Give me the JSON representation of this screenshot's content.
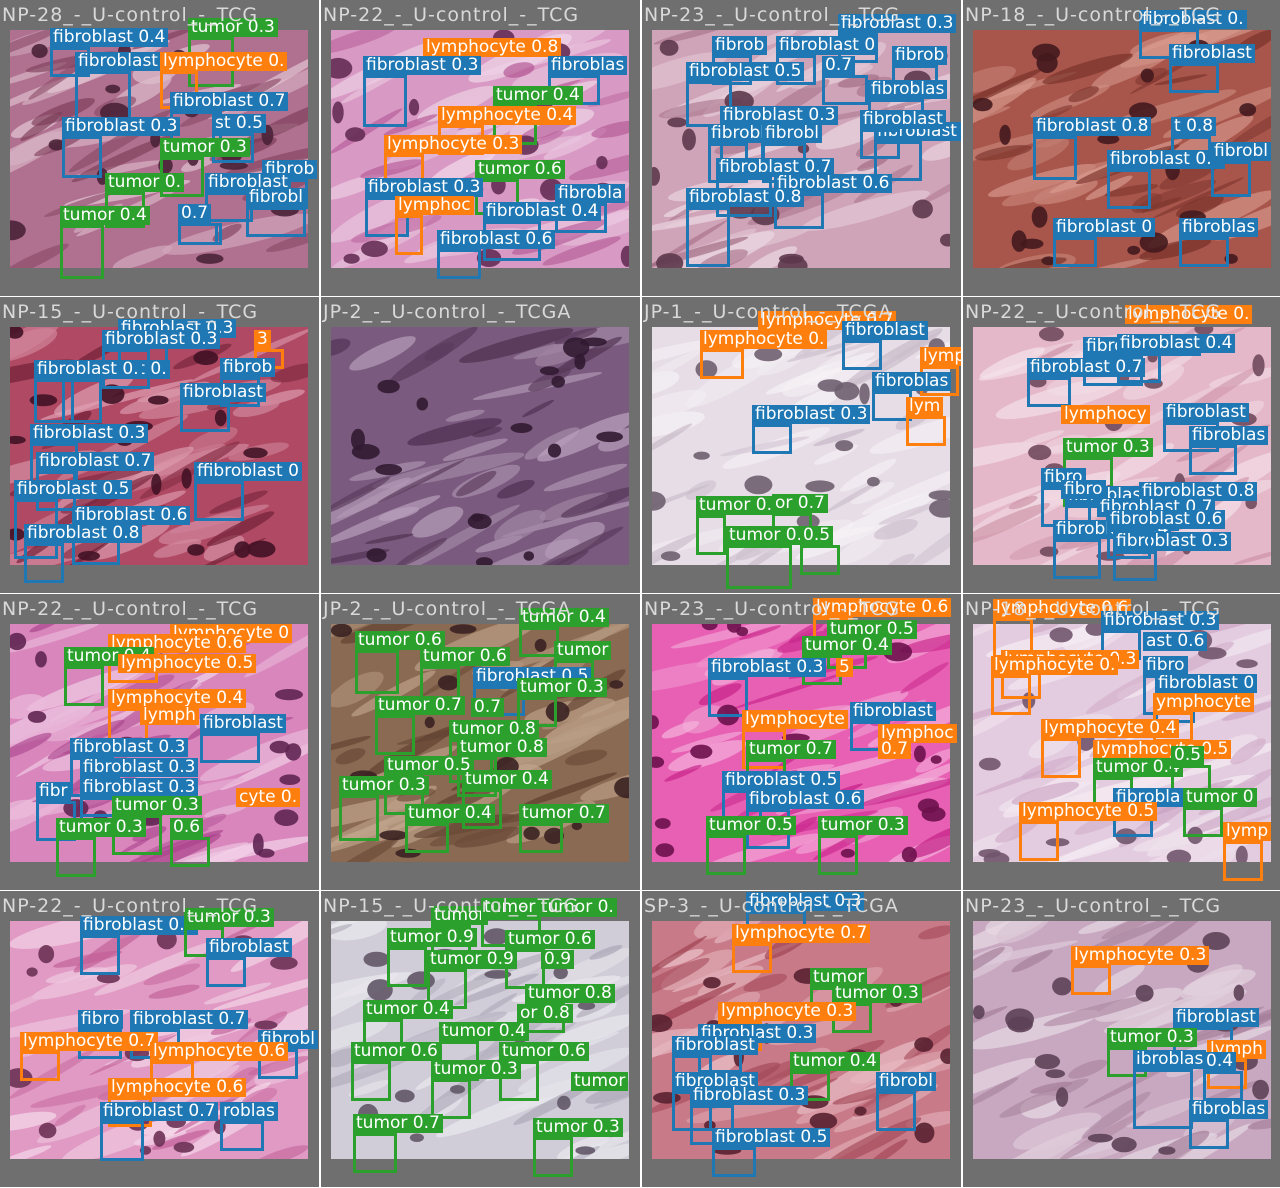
{
  "colors": {
    "fibroblast": "#1f77b4",
    "lymphocyte": "#ff7f0e",
    "tumor": "#2ca02c"
  },
  "tiles": [
    {
      "title": "NP-28_-_U-control_-_TCG",
      "palette": [
        "#7a3a55",
        "#b07090",
        "#e4c8d4"
      ],
      "detections": [
        {
          "cls": "fibroblast",
          "label": "fibroblast 0.4"
        },
        {
          "cls": "tumor",
          "label": "tumor 0.3"
        },
        {
          "cls": "fibroblast",
          "label": "fibroblast"
        },
        {
          "cls": "lymphocyte",
          "label": "lymphocyte 0."
        },
        {
          "cls": "fibroblast",
          "label": "fibroblast 0.7"
        },
        {
          "cls": "fibroblast",
          "label": "fibroblast 0.3"
        },
        {
          "cls": "fibroblast",
          "label": "st 0.5"
        },
        {
          "cls": "tumor",
          "label": "tumor 0.3"
        },
        {
          "cls": "fibroblast",
          "label": "0.7"
        },
        {
          "cls": "fibroblast",
          "label": "fibrob"
        },
        {
          "cls": "tumor",
          "label": "tumor 0."
        },
        {
          "cls": "fibroblast",
          "label": "fibroblast"
        },
        {
          "cls": "fibroblast",
          "label": "fibrobl"
        },
        {
          "cls": "tumor",
          "label": "tumor 0.4"
        },
        {
          "cls": "fibroblast",
          "label": "0.7"
        }
      ]
    },
    {
      "title": "NP-22_-_U-control_-_TCG",
      "palette": [
        "#b05090",
        "#d89ac4",
        "#f3dcec"
      ],
      "detections": [
        {
          "cls": "lymphocyte",
          "label": "lymphocyte 0.8"
        },
        {
          "cls": "fibroblast",
          "label": "fibroblast 0.3"
        },
        {
          "cls": "fibroblast",
          "label": "fibroblas"
        },
        {
          "cls": "tumor",
          "label": "tumor 0.4"
        },
        {
          "cls": "lymphocyte",
          "label": "lymphocyte 0.4"
        },
        {
          "cls": "lymphocyte",
          "label": "lymphocyte 0.3"
        },
        {
          "cls": "tumor",
          "label": "tumor 0.6"
        },
        {
          "cls": "fibroblast",
          "label": "fibroblast 0.3"
        },
        {
          "cls": "fibroblast",
          "label": "fibrobla"
        },
        {
          "cls": "lymphocyte",
          "label": "lymphoc"
        },
        {
          "cls": "fibroblast",
          "label": "fibroblast 0.4"
        },
        {
          "cls": "fibroblast",
          "label": "fibroblast 0.6"
        }
      ]
    },
    {
      "title": "NP-23_-_U-control_-_TCG",
      "palette": [
        "#a06880",
        "#cfa4b8",
        "#eedde6"
      ],
      "detections": [
        {
          "cls": "fibroblast",
          "label": "fibroblast 0.3"
        },
        {
          "cls": "fibroblast",
          "label": "fibrob"
        },
        {
          "cls": "fibroblast",
          "label": "fibroblast 0"
        },
        {
          "cls": "fibroblast",
          "label": "fibroblast 0.5"
        },
        {
          "cls": "fibroblast",
          "label": "0.7"
        },
        {
          "cls": "fibroblast",
          "label": "fibrob"
        },
        {
          "cls": "fibroblast",
          "label": "fibroblas"
        },
        {
          "cls": "fibroblast",
          "label": "fibroblast 0.3"
        },
        {
          "cls": "fibroblast",
          "label": "fibroblast"
        },
        {
          "cls": "fibroblast",
          "label": "fibrobl"
        },
        {
          "cls": "fibroblast",
          "label": "fibroblast 0.7"
        },
        {
          "cls": "fibroblast",
          "label": "fibroblast"
        },
        {
          "cls": "fibroblast",
          "label": "fibroblast 0.7"
        },
        {
          "cls": "fibroblast",
          "label": "fibroblast 0.6"
        },
        {
          "cls": "fibroblast",
          "label": "fibroblast 0.8"
        }
      ]
    },
    {
      "title": "NP-18_-_U-control_-_TCG",
      "palette": [
        "#6e2a22",
        "#a8564c",
        "#d89a8e"
      ],
      "detections": [
        {
          "cls": "fibroblast",
          "label": "fibroblast 0."
        },
        {
          "cls": "fibroblast",
          "label": "fibroblast"
        },
        {
          "cls": "fibroblast",
          "label": "fibroblast 0.8"
        },
        {
          "cls": "fibroblast",
          "label": "t 0.8"
        },
        {
          "cls": "fibroblast",
          "label": "fibroblast 0.7"
        },
        {
          "cls": "fibroblast",
          "label": "fibrobl"
        },
        {
          "cls": "fibroblast",
          "label": "fibroblast 0"
        },
        {
          "cls": "fibroblast",
          "label": "fibroblas"
        }
      ]
    },
    {
      "title": "NP-15_-_U-control_-_TCG",
      "palette": [
        "#6a1a30",
        "#b04a64",
        "#e0a0b4"
      ],
      "detections": [
        {
          "cls": "fibroblast",
          "label": "fibroblast 0.3"
        },
        {
          "cls": "fibroblast",
          "label": "fibroblast 0.3"
        },
        {
          "cls": "lymphocyte",
          "label": "3"
        },
        {
          "cls": "fibroblast",
          "label": "fibroblast 0."
        },
        {
          "cls": "fibroblast",
          "label": "fibrob"
        },
        {
          "cls": "fibroblast",
          "label": "fibroblast 0."
        },
        {
          "cls": "fibroblast",
          "label": "fibroblast"
        },
        {
          "cls": "fibroblast",
          "label": "fibroblast 0.3"
        },
        {
          "cls": "fibroblast",
          "label": "fibroblast 0.7"
        },
        {
          "cls": "fibroblast",
          "label": "ffibroblast 0"
        },
        {
          "cls": "fibroblast",
          "label": "fibroblast 0.5"
        },
        {
          "cls": "fibroblast",
          "label": "fibroblast 0.6"
        },
        {
          "cls": "fibroblast",
          "label": "fibroblast 0.8"
        }
      ]
    },
    {
      "title": "JP-2_-_U-control_-_TCGA",
      "palette": [
        "#4a2a4a",
        "#7a5a7e",
        "#bca4c0"
      ],
      "detections": []
    },
    {
      "title": "JP-1_-_U-control_-_TCGA",
      "palette": [
        "#c4b4c4",
        "#e6dde6",
        "#f6f3f6"
      ],
      "detections": [
        {
          "cls": "lymphocyte",
          "label": "lymphocyte 0.7"
        },
        {
          "cls": "lymphocyte",
          "label": "lymphocyte 0."
        },
        {
          "cls": "fibroblast",
          "label": "fibroblast"
        },
        {
          "cls": "lymphocyte",
          "label": "lymp"
        },
        {
          "cls": "fibroblast",
          "label": "fibroblas"
        },
        {
          "cls": "fibroblast",
          "label": "fibroblast 0.3"
        },
        {
          "cls": "lymphocyte",
          "label": "lym"
        },
        {
          "cls": "tumor",
          "label": "tumor 0.5"
        },
        {
          "cls": "tumor",
          "label": "or 0.7"
        },
        {
          "cls": "tumor",
          "label": "tumor 0.3"
        },
        {
          "cls": "tumor",
          "label": "0.5"
        }
      ]
    },
    {
      "title": "NP-22_-_U-control_-_TCG",
      "palette": [
        "#c88aa0",
        "#e4b8c8",
        "#f6e4ec"
      ],
      "detections": [
        {
          "cls": "lymphocyte",
          "label": "lymphocyte 0."
        },
        {
          "cls": "fibroblast",
          "label": "fibroblast 0.5"
        },
        {
          "cls": "fibroblast",
          "label": "fibroblast 0.4"
        },
        {
          "cls": "fibroblast",
          "label": "fibroblast 0.7"
        },
        {
          "cls": "lymphocyte",
          "label": "lymphocy"
        },
        {
          "cls": "fibroblast",
          "label": "fibroblast"
        },
        {
          "cls": "fibroblast",
          "label": "fibroblas"
        },
        {
          "cls": "tumor",
          "label": "tumor 0.3"
        },
        {
          "cls": "fibroblast",
          "label": "fibro"
        },
        {
          "cls": "fibroblast",
          "label": "fibroblast 0.5"
        },
        {
          "cls": "fibroblast",
          "label": "fibroblast 0.8"
        },
        {
          "cls": "fibroblast",
          "label": "fibro"
        },
        {
          "cls": "fibroblast",
          "label": "fibroblast 0.7"
        },
        {
          "cls": "fibroblast",
          "label": "fibroblast 0.4"
        },
        {
          "cls": "fibroblast",
          "label": "fibroblast 0.3"
        },
        {
          "cls": "fibroblast",
          "label": "fibroblast 0.6"
        }
      ]
    },
    {
      "title": "NP-22_-_U-control_-_TCG",
      "palette": [
        "#a8408a",
        "#d886bc",
        "#f4d4ea"
      ],
      "detections": [
        {
          "cls": "lymphocyte",
          "label": "lymphocyte 0"
        },
        {
          "cls": "lymphocyte",
          "label": "lymphocyte 0.6"
        },
        {
          "cls": "tumor",
          "label": "tumor 0.4"
        },
        {
          "cls": "lymphocyte",
          "label": "lymphocyte 0.5"
        },
        {
          "cls": "lymphocyte",
          "label": "lymphocyte 0.4"
        },
        {
          "cls": "lymphocyte",
          "label": "lymph"
        },
        {
          "cls": "fibroblast",
          "label": "fibroblast"
        },
        {
          "cls": "fibroblast",
          "label": "fibroblast 0.3"
        },
        {
          "cls": "fibroblast",
          "label": "fibroblast 0.3"
        },
        {
          "cls": "fibroblast",
          "label": "fibroblast 0.3"
        },
        {
          "cls": "fibroblast",
          "label": "fibr"
        },
        {
          "cls": "tumor",
          "label": "tumor 0.3"
        },
        {
          "cls": "lymphocyte",
          "label": "cyte 0."
        },
        {
          "cls": "tumor",
          "label": "tumor 0.3"
        },
        {
          "cls": "tumor",
          "label": "0.6"
        }
      ]
    },
    {
      "title": "JP-2_-_U-control_-_TCGA",
      "palette": [
        "#5a3a2a",
        "#8a6a52",
        "#c4a890"
      ],
      "detections": [
        {
          "cls": "tumor",
          "label": "tumor 0.4"
        },
        {
          "cls": "tumor",
          "label": "tumor 0.6"
        },
        {
          "cls": "tumor",
          "label": "tumor 0.6"
        },
        {
          "cls": "tumor",
          "label": "tumor"
        },
        {
          "cls": "fibroblast",
          "label": "fibroblast 0.5"
        },
        {
          "cls": "tumor",
          "label": "tumor 0.3"
        },
        {
          "cls": "tumor",
          "label": "tumor 0.7"
        },
        {
          "cls": "tumor",
          "label": "0.7"
        },
        {
          "cls": "tumor",
          "label": "tumor 0.8"
        },
        {
          "cls": "tumor",
          "label": "tumor 0.8"
        },
        {
          "cls": "tumor",
          "label": "tumor 0.5"
        },
        {
          "cls": "tumor",
          "label": "tumor 0.4"
        },
        {
          "cls": "tumor",
          "label": "tumor 0.3"
        },
        {
          "cls": "tumor",
          "label": "tumor 0.4"
        },
        {
          "cls": "tumor",
          "label": "tumor 0.7"
        }
      ]
    },
    {
      "title": "NP-23_-_U-control_-_TCG",
      "palette": [
        "#c01880",
        "#e860b4",
        "#f4b4dc"
      ],
      "detections": [
        {
          "cls": "lymphocyte",
          "label": "lymphocyte 0.6"
        },
        {
          "cls": "tumor",
          "label": "tumor 0.5"
        },
        {
          "cls": "tumor",
          "label": "tumor 0.4"
        },
        {
          "cls": "fibroblast",
          "label": "fibroblast 0.3"
        },
        {
          "cls": "lymphocyte",
          "label": "5"
        },
        {
          "cls": "lymphocyte",
          "label": "lymphocyte"
        },
        {
          "cls": "fibroblast",
          "label": "fibroblast"
        },
        {
          "cls": "lymphocyte",
          "label": "lymphoc"
        },
        {
          "cls": "tumor",
          "label": "tumor 0.7"
        },
        {
          "cls": "lymphocyte",
          "label": "0.7"
        },
        {
          "cls": "fibroblast",
          "label": "fibroblast 0.5"
        },
        {
          "cls": "fibroblast",
          "label": "fibroblast 0.6"
        },
        {
          "cls": "tumor",
          "label": "tumor 0.5"
        },
        {
          "cls": "tumor",
          "label": "tumor 0.3"
        }
      ]
    },
    {
      "title": "NP-18_-_U-control_-_TCG",
      "palette": [
        "#c8a0c0",
        "#e4cce0",
        "#f6eef4"
      ],
      "detections": [
        {
          "cls": "lymphocyte",
          "label": "lymphocyte 0.6"
        },
        {
          "cls": "fibroblast",
          "label": "fibroblast 0.3"
        },
        {
          "cls": "fibroblast",
          "label": "ast 0.6"
        },
        {
          "cls": "lymphocyte",
          "label": "lymphocyte 0.3"
        },
        {
          "cls": "fibroblast",
          "label": "fibro"
        },
        {
          "cls": "lymphocyte",
          "label": "lymphocyte 0."
        },
        {
          "cls": "fibroblast",
          "label": "fibroblast 0"
        },
        {
          "cls": "lymphocyte",
          "label": "ymphocyte"
        },
        {
          "cls": "lymphocyte",
          "label": "lymphocyte 0.4"
        },
        {
          "cls": "lymphocyte",
          "label": "lymphocyte 0.5"
        },
        {
          "cls": "tumor",
          "label": "tumor 0.4"
        },
        {
          "cls": "tumor",
          "label": "0.5"
        },
        {
          "cls": "fibroblast",
          "label": "fibrobla"
        },
        {
          "cls": "tumor",
          "label": "tumor 0"
        },
        {
          "cls": "lymphocyte",
          "label": "lymphocyte 0.5"
        },
        {
          "cls": "lymphocyte",
          "label": "lymp"
        }
      ]
    },
    {
      "title": "NP-22_-_U-control_-_TCG",
      "palette": [
        "#c05a94",
        "#e09ac4",
        "#f6dcec"
      ],
      "detections": [
        {
          "cls": "fibroblast",
          "label": "fibroblast 0.4"
        },
        {
          "cls": "tumor",
          "label": "tumor 0.3"
        },
        {
          "cls": "fibroblast",
          "label": "fibroblast"
        },
        {
          "cls": "fibroblast",
          "label": "fibro"
        },
        {
          "cls": "fibroblast",
          "label": "fibroblast 0.7"
        },
        {
          "cls": "fibroblast",
          "label": "fibrobl"
        },
        {
          "cls": "lymphocyte",
          "label": "lymphocyte 0.7"
        },
        {
          "cls": "lymphocyte",
          "label": "lymphocyte 0.6"
        },
        {
          "cls": "lymphocyte",
          "label": "lymphocyte 0.6"
        },
        {
          "cls": "fibroblast",
          "label": "fibroblast 0.7"
        },
        {
          "cls": "fibroblast",
          "label": "roblas"
        }
      ]
    },
    {
      "title": "NP-15_-_U-control_-_TCG",
      "palette": [
        "#a8a4b4",
        "#d0ccd8",
        "#ecebf0"
      ],
      "detections": [
        {
          "cls": "tumor",
          "label": "tumor"
        },
        {
          "cls": "tumor",
          "label": "tumor tumor 0."
        },
        {
          "cls": "tumor",
          "label": "tumor 0.9"
        },
        {
          "cls": "tumor",
          "label": "tumor 0.6"
        },
        {
          "cls": "tumor",
          "label": "tumor 0.9"
        },
        {
          "cls": "tumor",
          "label": "0.9"
        },
        {
          "cls": "tumor",
          "label": "tumor 0.8"
        },
        {
          "cls": "tumor",
          "label": "tumor 0.4"
        },
        {
          "cls": "tumor",
          "label": "or 0.8"
        },
        {
          "cls": "tumor",
          "label": "tumor 0.4"
        },
        {
          "cls": "tumor",
          "label": "tumor 0.6"
        },
        {
          "cls": "tumor",
          "label": "tumor 0.6"
        },
        {
          "cls": "tumor",
          "label": "tumor 0.3"
        },
        {
          "cls": "tumor",
          "label": "tumor"
        },
        {
          "cls": "tumor",
          "label": "tumor 0.7"
        },
        {
          "cls": "tumor",
          "label": "tumor 0.3"
        }
      ]
    },
    {
      "title": "SP-3_-_U-control_-_TCGA",
      "palette": [
        "#983848",
        "#c87a88",
        "#ecc4cc"
      ],
      "detections": [
        {
          "cls": "fibroblast",
          "label": "fibroblast 0.3"
        },
        {
          "cls": "lymphocyte",
          "label": "lymphocyte 0.7"
        },
        {
          "cls": "tumor",
          "label": "tumor"
        },
        {
          "cls": "tumor",
          "label": "tumor 0.3"
        },
        {
          "cls": "lymphocyte",
          "label": "lymphocyte 0.3"
        },
        {
          "cls": "fibroblast",
          "label": "fibroblast 0.3"
        },
        {
          "cls": "fibroblast",
          "label": "fibroblast"
        },
        {
          "cls": "tumor",
          "label": "tumor 0.4"
        },
        {
          "cls": "fibroblast",
          "label": "fibroblast"
        },
        {
          "cls": "fibroblast",
          "label": "fibroblast 0.3"
        },
        {
          "cls": "fibroblast",
          "label": "fibroblast 0.5"
        },
        {
          "cls": "fibroblast",
          "label": "fibrobl"
        }
      ]
    },
    {
      "title": "NP-23_-_U-control_-_TCG",
      "palette": [
        "#a07894",
        "#c8a8c0",
        "#e8dce6"
      ],
      "detections": [
        {
          "cls": "lymphocyte",
          "label": "lymphocyte 0.3"
        },
        {
          "cls": "fibroblast",
          "label": "fibroblast"
        },
        {
          "cls": "tumor",
          "label": "tumor 0.3"
        },
        {
          "cls": "lymphocyte",
          "label": "lymph"
        },
        {
          "cls": "fibroblast",
          "label": "ibroblas"
        },
        {
          "cls": "fibroblast",
          "label": "0.4"
        },
        {
          "cls": "fibroblast",
          "label": "fibroblas"
        }
      ]
    }
  ]
}
